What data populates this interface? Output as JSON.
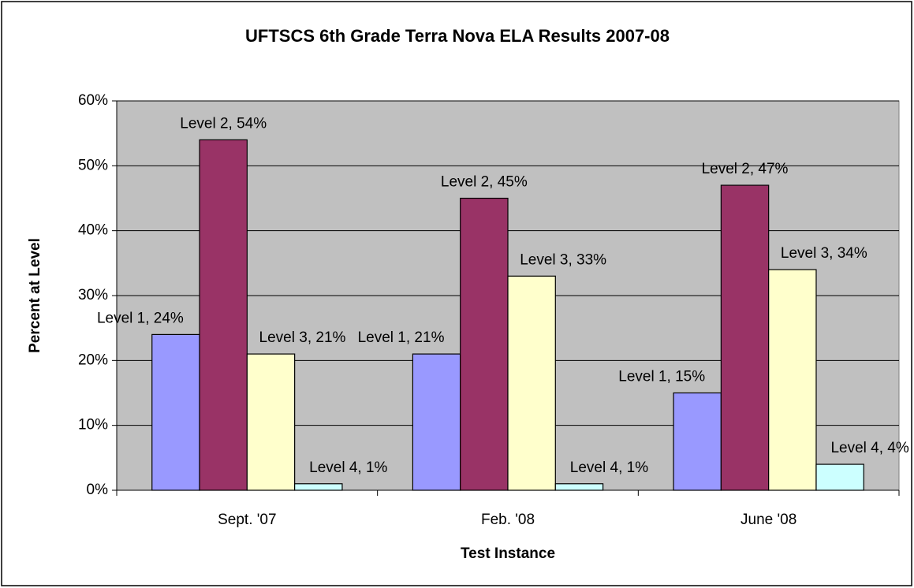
{
  "chart_data": {
    "type": "bar",
    "title": "UFTSCS 6th Grade Terra Nova ELA Results 2007-08",
    "x_label": "Test Instance",
    "y_label": "Percent at Level",
    "categories": [
      "Sept. '07",
      "Feb. '08",
      "June '08"
    ],
    "series": [
      {
        "color": "#9999ff",
        "values": [
          24,
          21,
          15
        ],
        "value_labels": [
          "Level 1, 24%",
          "Level 1, 21%",
          "Level 1, 15%"
        ]
      },
      {
        "color": "#993366",
        "values": [
          54,
          45,
          47
        ],
        "value_labels": [
          "Level 2, 54%",
          "Level 2, 45%",
          "Level 2, 47%"
        ]
      },
      {
        "color": "#ffffcc",
        "values": [
          21,
          33,
          34
        ],
        "value_labels": [
          "Level 3, 21%",
          "Level 3, 33%",
          "Level 3, 34%"
        ]
      },
      {
        "color": "#ccffff",
        "values": [
          1,
          1,
          4
        ],
        "value_labels": [
          "Level 4, 1%",
          "Level 4, 1%",
          "Level 4, 4%"
        ]
      }
    ],
    "ylim": [
      0,
      60
    ],
    "yticks": [
      {
        "value": 0,
        "label": "0%"
      },
      {
        "value": 10,
        "label": "10%"
      },
      {
        "value": 20,
        "label": "20%"
      },
      {
        "value": 30,
        "label": "30%"
      },
      {
        "value": 40,
        "label": "40%"
      },
      {
        "value": 50,
        "label": "50%"
      },
      {
        "value": 60,
        "label": "60%"
      }
    ],
    "grid": true,
    "plot_background": "#c0c0c0"
  }
}
